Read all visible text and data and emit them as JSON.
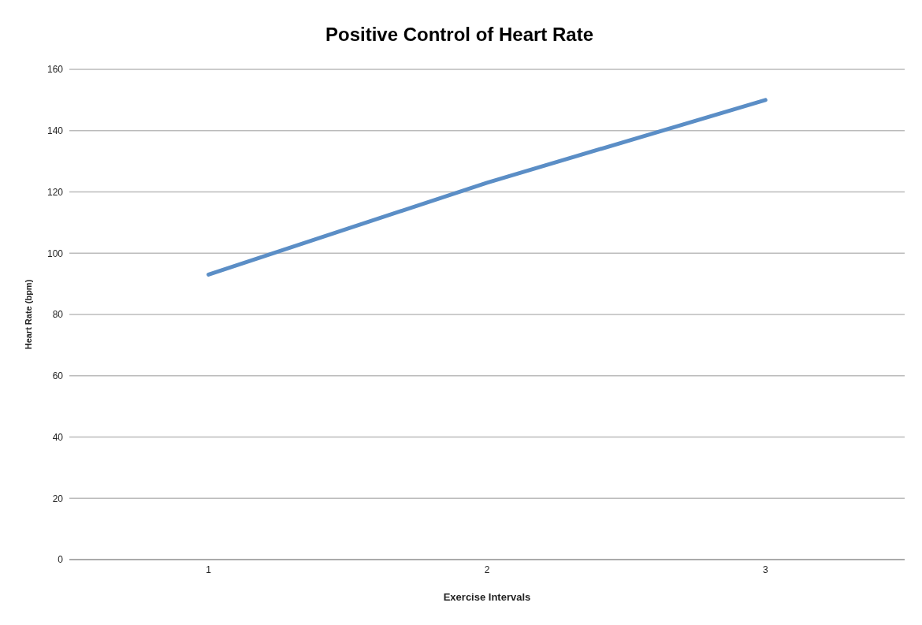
{
  "chart_data": {
    "type": "line",
    "title": "Positive Control of Heart Rate",
    "xlabel": "Exercise Intervals",
    "ylabel": "Heart Rate (bpm)",
    "categories": [
      "1",
      "2",
      "3"
    ],
    "series": [
      {
        "color": "#5b8ec6",
        "values": [
          93,
          123,
          150
        ]
      }
    ],
    "ylim": [
      0,
      160
    ],
    "yticks": [
      0,
      20,
      40,
      60,
      80,
      100,
      120,
      140,
      160
    ],
    "grid": "y",
    "legend": false,
    "marker": "none",
    "line_style": "solid"
  }
}
